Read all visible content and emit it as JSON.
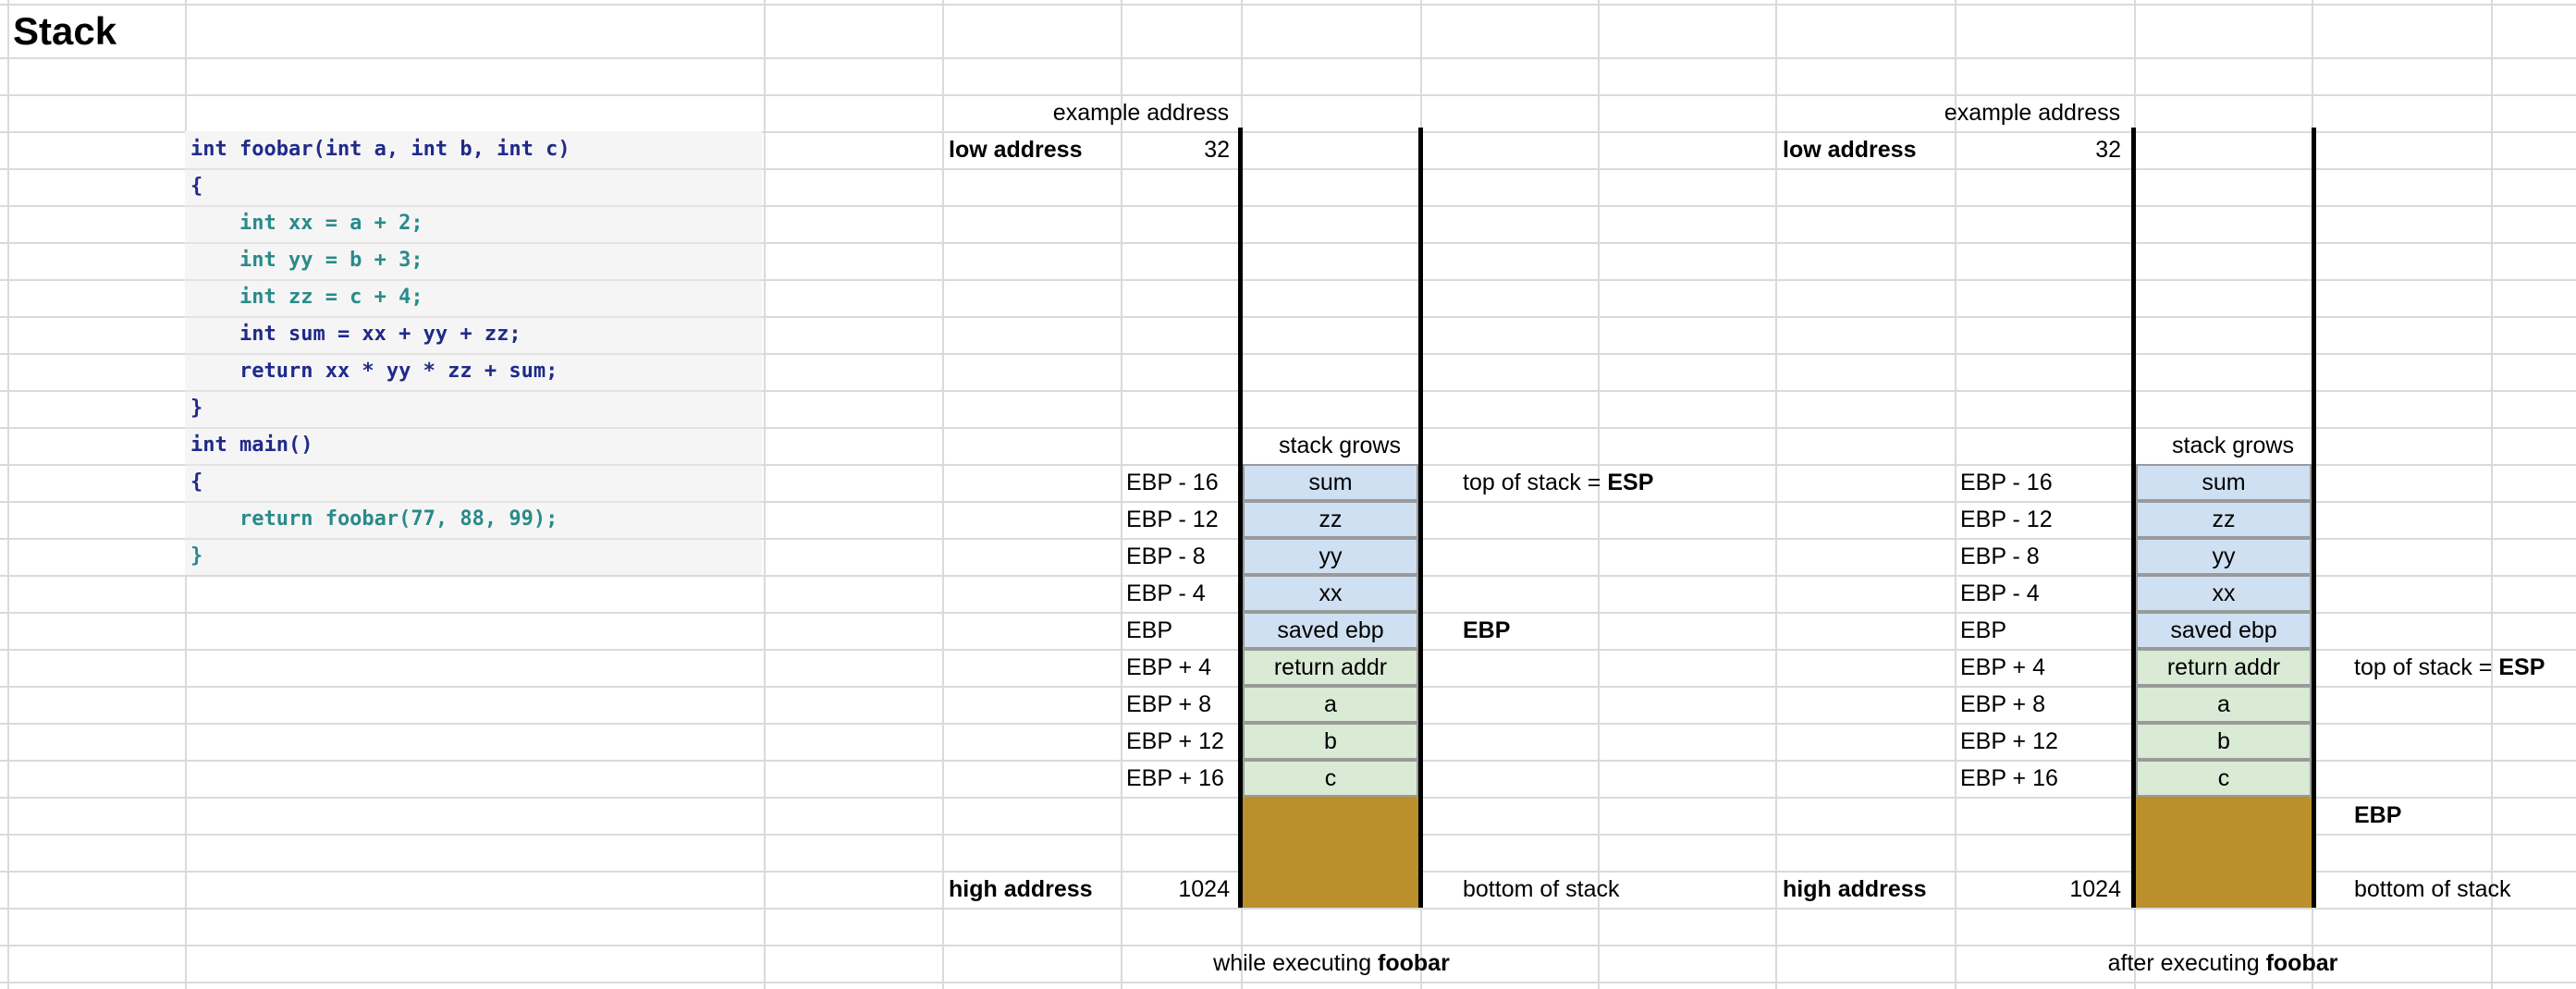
{
  "title": "Stack",
  "code": [
    {
      "text": "int foobar(int a, int b, int c)",
      "color": "#1f2a8a"
    },
    {
      "text": "{",
      "color": "#1f2a8a"
    },
    {
      "text": "    int xx = a + 2;",
      "color": "#2a8a8a"
    },
    {
      "text": "    int yy = b + 3;",
      "color": "#2a8a8a"
    },
    {
      "text": "    int zz = c + 4;",
      "color": "#2a8a8a"
    },
    {
      "text": "    int sum = xx + yy + zz;",
      "color": "#1f2a8a"
    },
    {
      "text": "    return xx * yy * zz + sum;",
      "color": "#1f2a8a"
    },
    {
      "text": "}",
      "color": "#1f2a8a"
    },
    {
      "text": "int main()",
      "color": "#1f2a8a"
    },
    {
      "text": "{",
      "color": "#1f2a8a"
    },
    {
      "text": "    return foobar(77, 88, 99);",
      "color": "#2a8a8a"
    },
    {
      "text": "}",
      "color": "#2a8a8a"
    }
  ],
  "colors": {
    "locals_fill": "#cfe0f2",
    "args_fill": "#d9ead5",
    "bottom_fill": "#bb8f2c",
    "code_primary": "#1f2a8a",
    "code_secondary": "#2a8a8a"
  },
  "diagrams": [
    {
      "example_address_label": "example address",
      "low_address_label": "low address",
      "low_address_value": "32",
      "high_address_label": "high address",
      "high_address_value": "1024",
      "stack_grows_label": "stack grows",
      "offsets": [
        "EBP - 16",
        "EBP - 12",
        "EBP - 8",
        "EBP - 4",
        "EBP",
        "EBP + 4",
        "EBP + 8",
        "EBP + 12",
        "EBP + 16"
      ],
      "cells": [
        "sum",
        "zz",
        "yy",
        "xx",
        "saved ebp",
        "return addr",
        "a",
        "b",
        "c"
      ],
      "esp_note_prefix": "top of stack = ",
      "esp_note_bold": "ESP",
      "ebp_note": "EBP",
      "bottom_note": "bottom of stack",
      "caption_prefix": "while executing ",
      "caption_bold": "foobar"
    },
    {
      "example_address_label": "example address",
      "low_address_label": "low address",
      "low_address_value": "32",
      "high_address_label": "high address",
      "high_address_value": "1024",
      "stack_grows_label": "stack grows",
      "offsets": [
        "EBP - 16",
        "EBP - 12",
        "EBP - 8",
        "EBP - 4",
        "EBP",
        "EBP + 4",
        "EBP + 8",
        "EBP + 12",
        "EBP + 16"
      ],
      "cells": [
        "sum",
        "zz",
        "yy",
        "xx",
        "saved ebp",
        "return addr",
        "a",
        "b",
        "c"
      ],
      "esp_note_prefix": "top of stack = ",
      "esp_note_bold": "ESP",
      "ebp_note": "EBP",
      "bottom_note": "bottom of stack",
      "caption_prefix": "after executing ",
      "caption_bold": "foobar"
    }
  ]
}
